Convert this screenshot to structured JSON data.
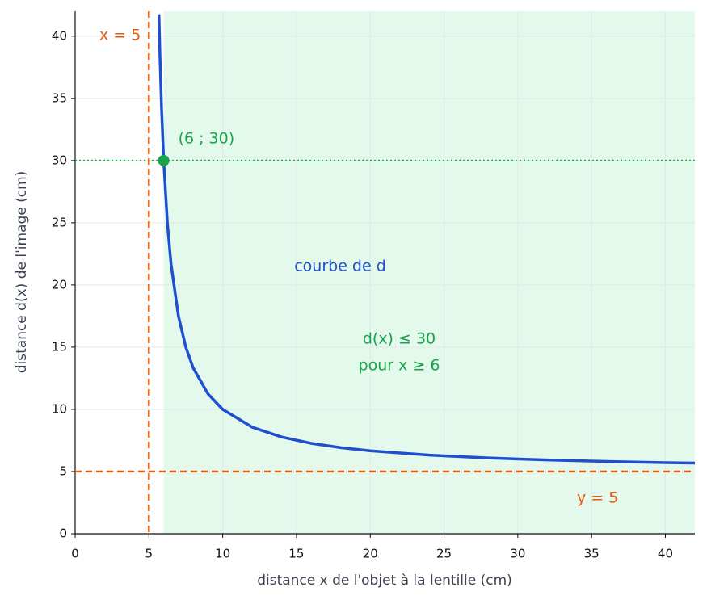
{
  "chart_data": {
    "type": "line",
    "xlabel": "distance x de l'objet à la lentille (cm)",
    "ylabel": "distance d(x) de l'image (cm)",
    "x": [
      5.68,
      5.75,
      5.85,
      6,
      6.25,
      6.5,
      7,
      7.5,
      8,
      9,
      10,
      12,
      14,
      16,
      18,
      20,
      24,
      28,
      32,
      36,
      40,
      42
    ],
    "series": [
      {
        "name": "courbe de d",
        "color": "#1f4fd1",
        "values": [
          41.76,
          38.33,
          34.41,
          30,
          25,
          21.67,
          17.5,
          15,
          13.33,
          11.25,
          10,
          8.57,
          7.78,
          7.27,
          6.92,
          6.67,
          6.32,
          6.09,
          5.93,
          5.81,
          5.71,
          5.68
        ]
      }
    ],
    "xlim": [
      0,
      42
    ],
    "ylim": [
      0,
      42
    ],
    "xticks": [
      0,
      5,
      10,
      15,
      20,
      25,
      30,
      35,
      40
    ],
    "yticks": [
      0,
      5,
      10,
      15,
      20,
      25,
      30,
      35,
      40
    ],
    "grid": true,
    "asymptotes": [
      {
        "axis": "x",
        "value": 5,
        "label": "x = 5",
        "color": "#e8590c"
      },
      {
        "axis": "y",
        "value": 5,
        "label": "y = 5",
        "color": "#e8590c"
      }
    ],
    "reference_line": {
      "axis": "y",
      "value": 30,
      "color": "#17a34a"
    },
    "point": {
      "x": 6,
      "y": 30,
      "label": "(6 ; 30)",
      "color": "#17a34a"
    },
    "region": {
      "x_from": 6,
      "color": "#e3f9ec",
      "label": [
        "d(x) ≤ 30",
        "pour x ≥ 6"
      ],
      "label_color": "#17a34a"
    }
  }
}
